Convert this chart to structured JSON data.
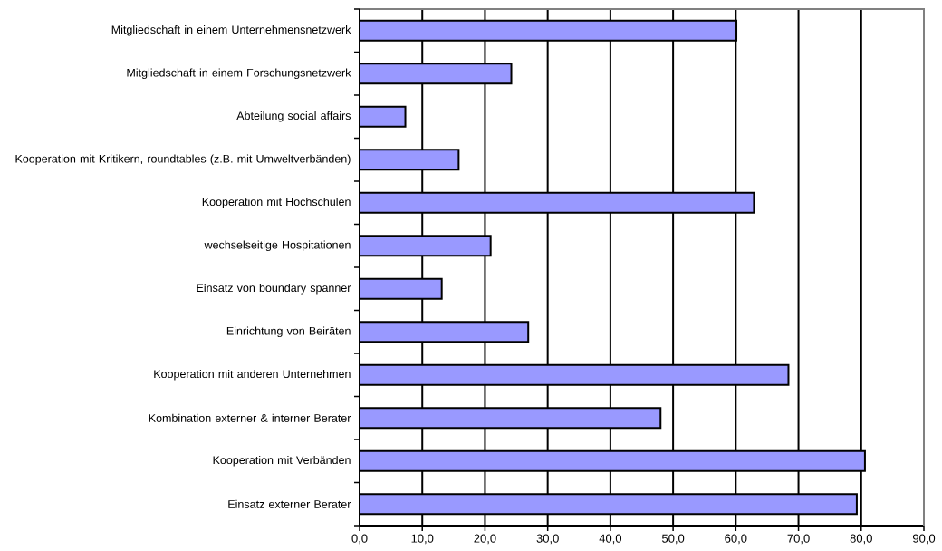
{
  "chart_data": {
    "type": "bar",
    "orientation": "horizontal",
    "categories": [
      "Mitgliedschaft in einem Unternehmensnetzwerk",
      "Mitgliedschaft in einem Forschungsnetzwerk",
      "Abteilung social affairs",
      "Kooperation mit Kritikern, roundtables (z.B. mit Umweltverbänden)",
      "Kooperation mit Hochschulen",
      "wechselseitige Hospitationen",
      "Einsatz von boundary spanner",
      "Einrichtung von Beiräten",
      "Kooperation mit anderen Unternehmen",
      "Kombination externer & interner Berater",
      "Kooperation mit Verbänden",
      "Einsatz externer Berater"
    ],
    "values": [
      60.1,
      24.2,
      7.3,
      15.8,
      62.9,
      20.9,
      13.1,
      26.9,
      68.4,
      48.0,
      80.6,
      79.3
    ],
    "color": "#9999ff",
    "xlim": [
      0,
      90
    ],
    "xticks": [
      {
        "value": 0,
        "label": "0,0"
      },
      {
        "value": 10,
        "label": "10,0"
      },
      {
        "value": 20,
        "label": "20,0"
      },
      {
        "value": 30,
        "label": "30,0"
      },
      {
        "value": 40,
        "label": "40,0"
      },
      {
        "value": 50,
        "label": "50,0"
      },
      {
        "value": 60,
        "label": "60,0"
      },
      {
        "value": 70,
        "label": "70,0"
      },
      {
        "value": 80,
        "label": "80,0"
      },
      {
        "value": 90,
        "label": "90,0"
      }
    ],
    "grid": "x"
  }
}
